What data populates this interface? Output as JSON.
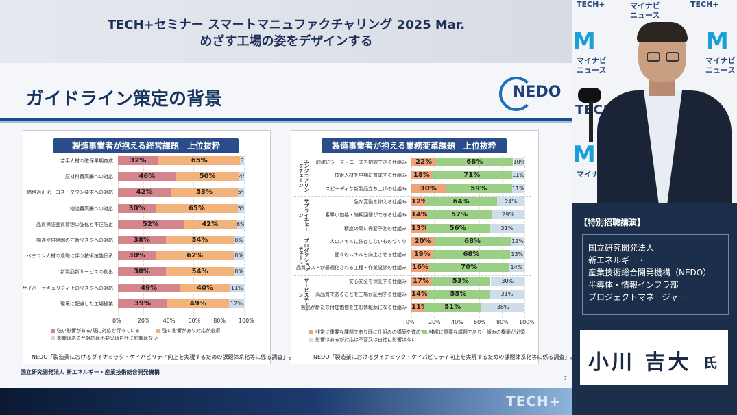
{
  "slide": {
    "event_line1": "TECH+セミナー スマートマニュファクチャリング 2025 Mar.",
    "event_line2": "めざす工場の姿をデザインする",
    "section_title": "ガイドライン策定の背景",
    "logo_text": "NEDO",
    "footer": "国立研究開発法人 新エネルギー・産業技術総合開発機構",
    "page_number": "7",
    "bottom_logo": "TECH+"
  },
  "colors": {
    "panel1": [
      "#d4848b",
      "#f1b27b",
      "#c9daec"
    ],
    "panel2": [
      "#f1a277",
      "#9ccf86",
      "#cfdcea"
    ],
    "header_navy": "#2a4c8a"
  },
  "chart_data": [
    {
      "type": "bar",
      "title": "製造事業者が抱える経営課題　上位抜粋",
      "orientation": "horizontal-stacked",
      "categories": [
        "若手人材の確保早期育成",
        "原材料費高騰への対応",
        "価格適正化・コストダウン要求への対応",
        "物流費高騰への対応",
        "品質保証品質管理の強化と不正防止",
        "調達や供給網の寸断リスクへの対応",
        "ベテラン人材の退職に伴う技術技能伝承",
        "新製品新サービスの創出",
        "サイバーセキュリティ上のリスクへの対応",
        "環境に配慮した工場操業"
      ],
      "series": [
        {
          "name": "強い影響がある/既に対応を行っている",
          "values": [
            32,
            46,
            42,
            30,
            52,
            38,
            30,
            38,
            49,
            39
          ]
        },
        {
          "name": "強い影響があり対応が必須",
          "values": [
            65,
            50,
            53,
            65,
            42,
            54,
            62,
            54,
            40,
            49
          ]
        },
        {
          "name": "影響はあるが対応は不要又は自社に影響はない",
          "values": [
            3,
            4,
            5,
            5,
            6,
            8,
            8,
            8,
            11,
            12
          ]
        }
      ],
      "labels": [
        [
          "32%",
          "65%",
          "3%"
        ],
        [
          "46%",
          "50%",
          "4%"
        ],
        [
          "42%",
          "53%",
          "5%"
        ],
        [
          "30%",
          "65%",
          "5%"
        ],
        [
          "52%",
          "42%",
          "6%"
        ],
        [
          "38%",
          "54%",
          "8%"
        ],
        [
          "30%",
          "62%",
          "8%"
        ],
        [
          "38%",
          "54%",
          "8%"
        ],
        [
          "49%",
          "40%",
          "11%"
        ],
        [
          "39%",
          "49%",
          "12%"
        ]
      ],
      "xticks": [
        "0%",
        "20%",
        "40%",
        "60%",
        "80%",
        "100%"
      ],
      "xlim": [
        0,
        100
      ],
      "legend_labels": [
        "強い影響がある/既に対応を行っている",
        "強い影響があり対応が必須",
        "影響はあるが対応は不要又は自社に影響はない"
      ],
      "source": "NEDO「製造業におけるダイナミック・ケイパビリティ向上を実現するための課題体系化等に係る調査」より",
      "grid": true
    },
    {
      "type": "bar",
      "title": "製造事業者が抱える業務変革課題　上位抜粋",
      "orientation": "horizontal-stacked",
      "groups": [
        {
          "name": "エンジニアリングチェーン",
          "start": 0,
          "count": 3
        },
        {
          "name": "サプライチェーン",
          "start": 3,
          "count": 3
        },
        {
          "name": "プロダクションチェーン",
          "start": 6,
          "count": 3
        },
        {
          "name": "サービスチェーン",
          "start": 9,
          "count": 3
        }
      ],
      "categories": [
        "的確にシーズ・ニーズを把握できる仕組み",
        "技術人材を早期に育成する仕組み",
        "スピーディな新製品立ち上げの仕組み",
        "急な変動を抑える仕組み",
        "素早い価格・納期回答ができる仕組み",
        "精度の高い需要予測の仕組み",
        "人のスキルに依存しないものづくり",
        "個々のスキルを向上させる仕組み",
        "品質コストが最適化される工程・作業設計の仕組み",
        "安心安全を保証する仕組み",
        "高品質であることを工場が証明する仕組み",
        "製品が新たな付加価値を生む情報源になる仕組み"
      ],
      "series": [
        {
          "name": "非常に重要な課題であり既に仕組みの構築を進めている",
          "values": [
            22,
            18,
            30,
            12,
            14,
            13,
            20,
            19,
            16,
            17,
            14,
            11
          ]
        },
        {
          "name": "非常に重要な課題であり仕組みの構築が必須",
          "values": [
            68,
            71,
            59,
            64,
            57,
            56,
            68,
            68,
            70,
            53,
            55,
            51
          ]
        },
        {
          "name": "影響はあるが対応は不要又は自社に影響はない",
          "values": [
            10,
            11,
            11,
            24,
            29,
            31,
            12,
            13,
            14,
            30,
            31,
            38
          ]
        }
      ],
      "labels": [
        [
          "22%",
          "68%",
          "10%"
        ],
        [
          "18%",
          "71%",
          "11%"
        ],
        [
          "30%",
          "59%",
          "11%"
        ],
        [
          "12%",
          "64%",
          "24%"
        ],
        [
          "14%",
          "57%",
          "29%"
        ],
        [
          "13%",
          "56%",
          "31%"
        ],
        [
          "20%",
          "68%",
          "12%"
        ],
        [
          "19%",
          "68%",
          "13%"
        ],
        [
          "16%",
          "70%",
          "14%"
        ],
        [
          "17%",
          "53%",
          "30%"
        ],
        [
          "14%",
          "55%",
          "31%"
        ],
        [
          "11%",
          "51%",
          "38%"
        ]
      ],
      "xticks": [
        "0%",
        "20%",
        "40%",
        "60%",
        "80%",
        "100%"
      ],
      "xlim": [
        0,
        100
      ],
      "legend_labels": [
        "非常に重要な課題であり既に仕組みの構築を進めている",
        "非常に重要な課題であり仕組みの構築が必須",
        "影響はあるが対応は不要又は自社に影響はない"
      ],
      "source": "NEDO「製造業におけるダイナミック・ケイパビリティ向上を実現するための課題体系化等に係る調査」より",
      "grid": true
    }
  ],
  "speaker": {
    "tag": "【特別招聘講演】",
    "affiliation": [
      "国立研究開発法人",
      "新エネルギー・",
      "産業技術総合開発機構（NEDO）",
      "半導体・情報インフラ部",
      "プロジェクトマネージャー"
    ],
    "name": "小川 吉大",
    "suffix": "氏"
  },
  "backdrop": {
    "words": [
      "マイナビ",
      "ニュース",
      "TECH+",
      "TECH+",
      "マイナビ",
      "ニュース",
      "マイナビ",
      "ニュース",
      "TECH+",
      "マイナビ"
    ],
    "icon": "mynavi-m-logo"
  }
}
